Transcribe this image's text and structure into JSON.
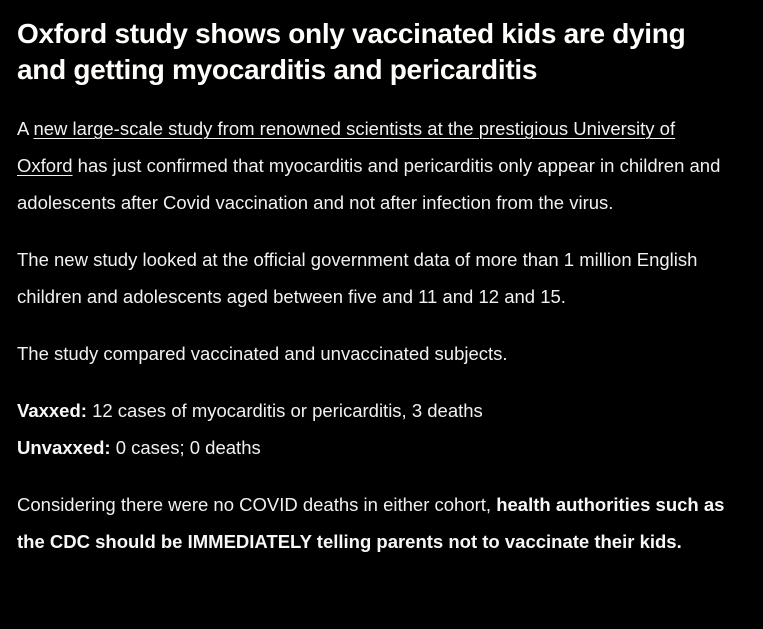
{
  "page": {
    "background_color": "#000000",
    "title_color": "#fffefb",
    "body_text_color": "#f1f1f1"
  },
  "article": {
    "title": "Oxford study shows only vaccinated kids are dying and getting myocarditis and pericarditis",
    "intro": {
      "prefix": "A ",
      "link_text": "new large-scale study from renowned scientists at the prestigious University of Oxford",
      "suffix": " has just confirmed that myocarditis and pericarditis only appear in children and adolescents after Covid vaccination and not after infection from the virus."
    },
    "study_scope": "The new study looked at the official government data of more than 1 million English children and adolescents aged between five and 11 and 12 and 15.",
    "comparison": "The study compared vaccinated and unvaccinated subjects.",
    "stats": {
      "vaxxed_label": "Vaxxed:",
      "vaxxed_value": "12 cases of myocarditis or pericarditis, 3 deaths",
      "unvaxxed_label": "Unvaxxed:",
      "unvaxxed_value": "0 cases; 0 deaths"
    },
    "conclusion": {
      "prefix": "Considering there were no COVID deaths in either cohort, ",
      "bold": "health authorities such as the CDC should be IMMEDIATELY telling parents not to vaccinate their kids."
    }
  }
}
